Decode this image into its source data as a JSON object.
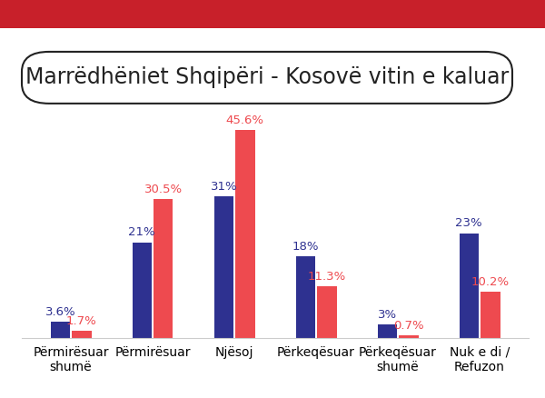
{
  "chart_data": {
    "type": "bar",
    "title": "Marrëdhëniet Shqipëri - Kosovë vitin e kaluar",
    "categories": [
      "Përmirësuar\nshumë",
      "Përmirësuar",
      "Njësoj",
      "Përkeqësuar",
      "Përkeqësuar\nshumë",
      "Nuk e di /\nRefuzon"
    ],
    "series": [
      {
        "color": "#2e3190",
        "values": [
          3.6,
          21,
          31,
          18,
          3,
          23
        ],
        "value_labels": [
          "3.6%",
          "21%",
          "31%",
          "18%",
          "3%",
          "23%"
        ]
      },
      {
        "color": "#ee4a4f",
        "values": [
          1.7,
          30.5,
          45.6,
          11.3,
          0.7,
          10.2
        ],
        "value_labels": [
          "1.7%",
          "30.5%",
          "45.6%",
          "11.3%",
          "0.7%",
          "10.2%"
        ]
      }
    ],
    "data_labels": true,
    "tick_labels": "x",
    "grid": false
  }
}
